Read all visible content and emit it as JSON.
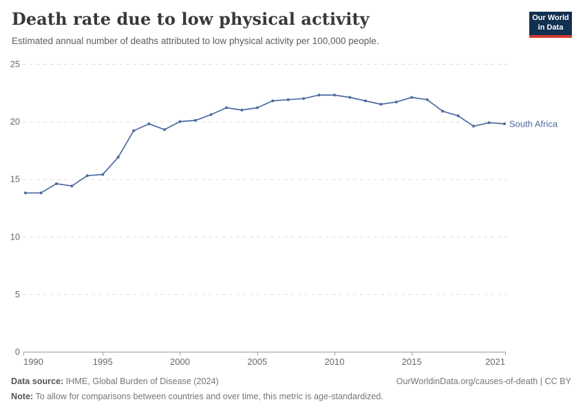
{
  "header": {
    "title": "Death rate due to low physical activity",
    "subtitle": "Estimated annual number of deaths attributed to low physical activity per 100,000 people."
  },
  "logo": {
    "line1": "Our World",
    "line2": "in Data",
    "bg_color": "#12304f",
    "accent_color": "#cf3b30"
  },
  "chart_data": {
    "type": "line",
    "title": "Death rate due to low physical activity",
    "x": [
      1990,
      1991,
      1992,
      1993,
      1994,
      1995,
      1996,
      1997,
      1998,
      1999,
      2000,
      2001,
      2002,
      2003,
      2004,
      2005,
      2006,
      2007,
      2008,
      2009,
      2010,
      2011,
      2012,
      2013,
      2014,
      2015,
      2016,
      2017,
      2018,
      2019,
      2020,
      2021
    ],
    "series": [
      {
        "name": "South Africa",
        "color": "#4C6A9C",
        "values": [
          13.8,
          13.8,
          14.6,
          14.4,
          15.3,
          15.4,
          16.9,
          19.2,
          19.8,
          19.3,
          20.0,
          20.1,
          20.6,
          21.2,
          21.0,
          21.2,
          21.8,
          21.9,
          22.0,
          22.3,
          22.3,
          22.1,
          21.8,
          21.5,
          21.7,
          22.1,
          21.9,
          20.9,
          20.5,
          19.6,
          19.9,
          19.8
        ]
      }
    ],
    "xlabel": "",
    "ylabel": "",
    "ylim": [
      0,
      25
    ],
    "xlim": [
      1990,
      2021
    ],
    "yticks": [
      0,
      5,
      10,
      15,
      20,
      25
    ],
    "xticks": [
      1990,
      1995,
      2000,
      2005,
      2010,
      2015,
      2021
    ],
    "grid": "horizontal-dashed",
    "legend_position": "end-of-line-label",
    "colors": {
      "gridline": "#dedede",
      "axis": "#9a9a9a",
      "tick_label": "#666666"
    }
  },
  "footer": {
    "datasource_label": "Data source:",
    "datasource_text": " IHME, Global Burden of Disease (2024)",
    "link_text": "OurWorldinData.org/causes-of-death | CC BY",
    "note_label": "Note:",
    "note_text": " To allow for comparisons between countries and over time, this metric is age-standardized."
  }
}
